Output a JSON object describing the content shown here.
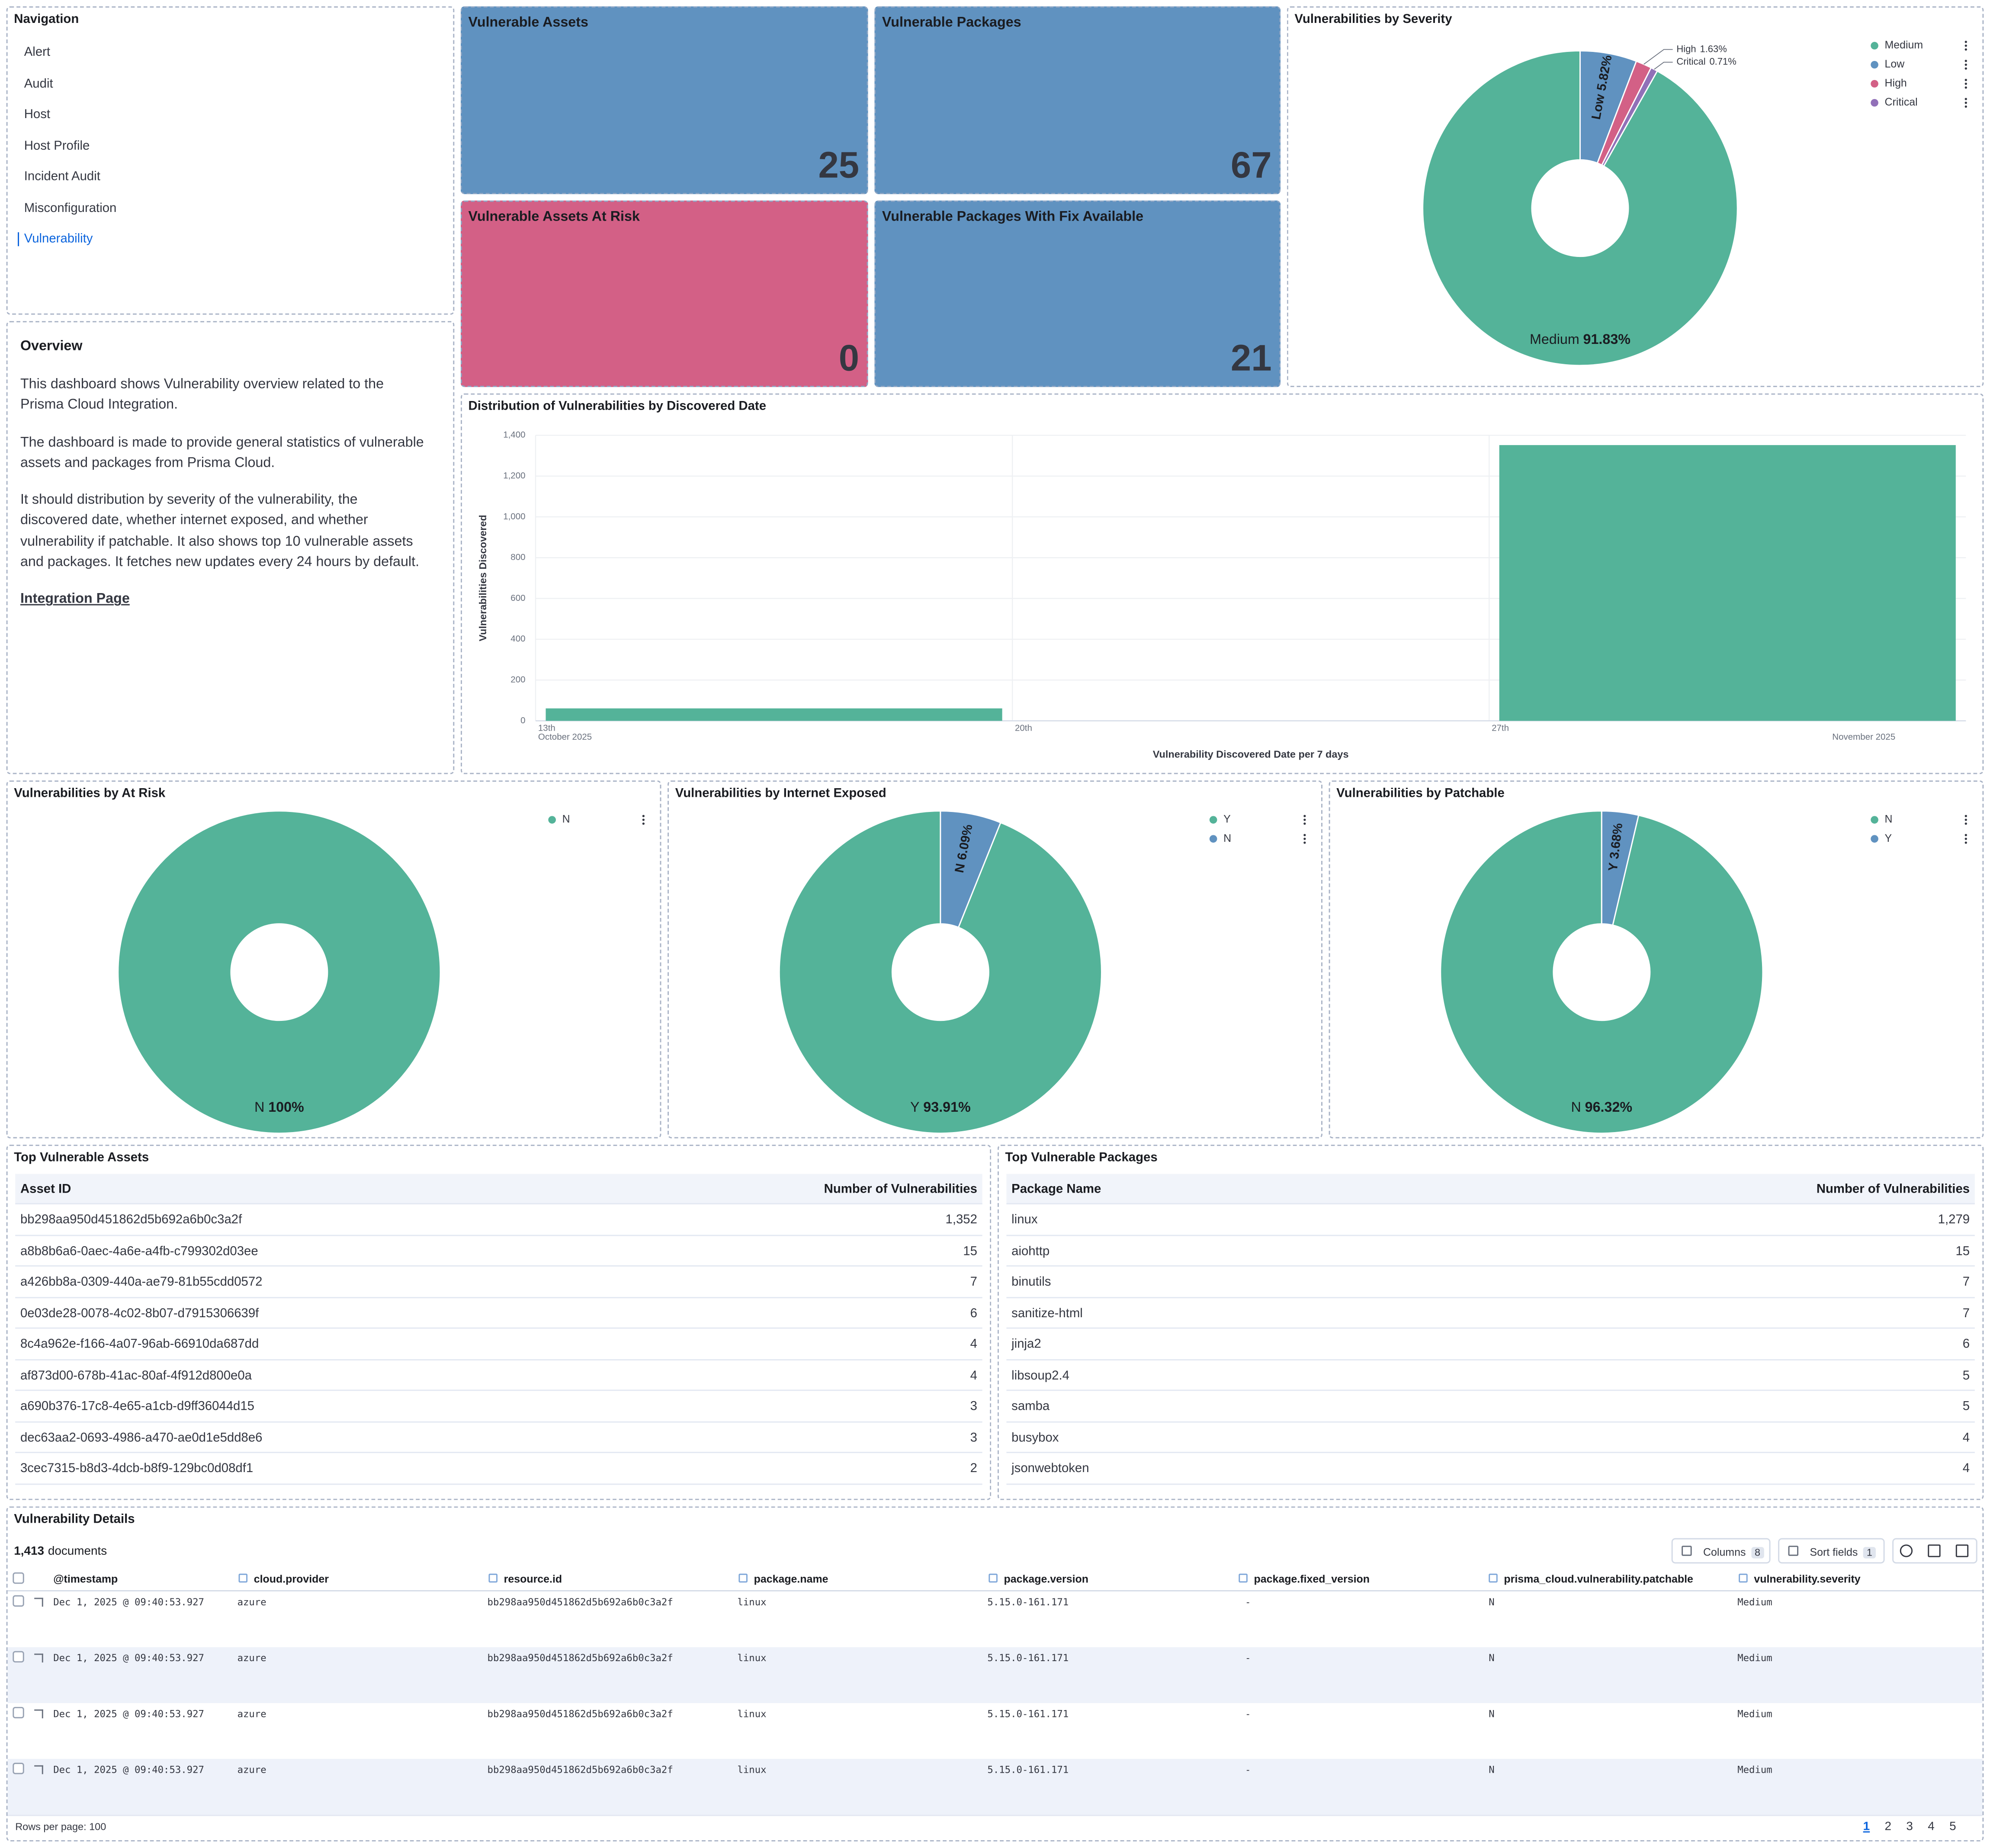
{
  "navigation": {
    "title": "Navigation",
    "items": [
      "Alert",
      "Audit",
      "Host",
      "Host Profile",
      "Incident Audit",
      "Misconfiguration",
      "Vulnerability"
    ],
    "active": 6
  },
  "overview": {
    "title": "Overview",
    "paragraphs": [
      "This dashboard shows Vulnerability overview related to the Prisma Cloud Integration.",
      "The dashboard is made to provide general statistics of vulnerable assets and packages from Prisma Cloud.",
      "It should distribution by severity of the vulnerability, the discovered date, whether internet exposed, and whether vulnerability if patchable. It also shows top 10 vulnerable assets and packages. It fetches new updates every 24 hours by default."
    ],
    "link": "Integration Page"
  },
  "metrics": [
    {
      "title": "Vulnerable Assets",
      "value": 25,
      "color": "#6092c0"
    },
    {
      "title": "Vulnerable Packages",
      "value": 67,
      "color": "#6092c0"
    },
    {
      "title": "Vulnerable Assets At Risk",
      "value": 0,
      "color": "#d36086"
    },
    {
      "title": "Vulnerable Packages With Fix Available",
      "value": 21,
      "color": "#6092c0"
    }
  ],
  "chart_data": [
    {
      "type": "pie",
      "title": "Vulnerabilities by Severity",
      "categories": [
        "Medium",
        "Low",
        "High",
        "Critical"
      ],
      "values": [
        91.83,
        5.82,
        1.63,
        0.71
      ],
      "value_labels": [
        "91.83%",
        "5.82%",
        "1.63%",
        "0.71%"
      ],
      "colors": [
        "#54b399",
        "#6092c0",
        "#d36086",
        "#9170b8"
      ],
      "legend": "top-right"
    },
    {
      "type": "bar",
      "title": "Distribution of Vulnerabilities by Discovered Date",
      "x_label": "Vulnerability Discovered Date per 7 days",
      "y_label": "Vulnerabilities Discovered",
      "x": [
        "2025-10-13",
        "2025-10-27"
      ],
      "values": [
        61,
        1352
      ],
      "color": "#54b399",
      "xlim": [
        "2025-10-13",
        "2025-11-03"
      ],
      "xticks": [
        {
          "value": "2025-10-13",
          "label": "13th"
        },
        {
          "value": "2025-10-20",
          "label": "20th"
        },
        {
          "value": "2025-10-27",
          "label": "27th"
        }
      ],
      "month_labels": [
        {
          "value": "2025-10-13",
          "label": "October 2025"
        },
        {
          "value": "2025-11",
          "label": "November 2025"
        }
      ],
      "ylim": [
        0,
        1400
      ],
      "yticks": [
        0,
        200,
        400,
        600,
        800,
        {
          "value": 1000,
          "label": "1,000"
        },
        {
          "value": 1200,
          "label": "1,200"
        },
        {
          "value": 1400,
          "label": "1,400"
        }
      ],
      "grid": true
    },
    {
      "type": "pie",
      "title": "Vulnerabilities by At Risk",
      "categories": [
        "N"
      ],
      "values": [
        100
      ],
      "value_labels": [
        "100%"
      ],
      "colors": [
        "#54b399"
      ],
      "legend": "top-right"
    },
    {
      "type": "pie",
      "title": "Vulnerabilities by Internet Exposed",
      "categories": [
        "Y",
        "N"
      ],
      "values": [
        93.91,
        6.09
      ],
      "value_labels": [
        "93.91%",
        "6.09%"
      ],
      "colors": [
        "#54b399",
        "#6092c0"
      ],
      "legend": "top-right"
    },
    {
      "type": "pie",
      "title": "Vulnerabilities by Patchable",
      "categories": [
        "N",
        "Y"
      ],
      "values": [
        96.32,
        3.68
      ],
      "value_labels": [
        "96.32%",
        "3.68%"
      ],
      "colors": [
        "#54b399",
        "#6092c0"
      ],
      "legend": "top-right"
    }
  ],
  "top_assets": {
    "title": "Top Vulnerable Assets",
    "columns": [
      "Asset ID",
      "Number of Vulnerabilities"
    ],
    "rows": [
      [
        "bb298aa950d451862d5b692a6b0c3a2f",
        "1,352"
      ],
      [
        "a8b8b6a6-0aec-4a6e-a4fb-c799302d03ee",
        "15"
      ],
      [
        "a426bb8a-0309-440a-ae79-81b55cdd0572",
        "7"
      ],
      [
        "0e03de28-0078-4c02-8b07-d7915306639f",
        "6"
      ],
      [
        "8c4a962e-f166-4a07-96ab-66910da687dd",
        "4"
      ],
      [
        "af873d00-678b-41ac-80af-4f912d800e0a",
        "4"
      ],
      [
        "a690b376-17c8-4e65-a1cb-d9ff36044d15",
        "3"
      ],
      [
        "dec63aa2-0693-4986-a470-ae0d1e5dd8e6",
        "3"
      ],
      [
        "3cec7315-b8d3-4dcb-b8f9-129bc0d08df1",
        "2"
      ]
    ]
  },
  "top_packages": {
    "title": "Top Vulnerable Packages",
    "columns": [
      "Package Name",
      "Number of Vulnerabilities"
    ],
    "rows": [
      [
        "linux",
        "1,279"
      ],
      [
        "aiohttp",
        "15"
      ],
      [
        "binutils",
        "7"
      ],
      [
        "sanitize-html",
        "7"
      ],
      [
        "jinja2",
        "6"
      ],
      [
        "libsoup2.4",
        "5"
      ],
      [
        "samba",
        "5"
      ],
      [
        "busybox",
        "4"
      ],
      [
        "jsonwebtoken",
        "4"
      ]
    ]
  },
  "details": {
    "title": "Vulnerability Details",
    "count": "1,413",
    "count_label": "documents",
    "buttons": [
      {
        "label": "Columns",
        "badge": "8"
      },
      {
        "label": "Sort fields",
        "badge": "1"
      }
    ],
    "columns": [
      "@timestamp",
      "cloud.provider",
      "resource.id",
      "package.name",
      "package.version",
      "package.fixed_version",
      "prisma_cloud.vulnerability.patchable",
      "vulnerability.severity"
    ],
    "rows": [
      [
        "Dec 1, 2025 @ 09:40:53.927",
        "azure",
        "bb298aa950d451862d5b692a6b0c3a2f",
        "linux",
        "5.15.0-161.171",
        "-",
        "N",
        "Medium"
      ],
      [
        "Dec 1, 2025 @ 09:40:53.927",
        "azure",
        "bb298aa950d451862d5b692a6b0c3a2f",
        "linux",
        "5.15.0-161.171",
        "-",
        "N",
        "Medium"
      ],
      [
        "Dec 1, 2025 @ 09:40:53.927",
        "azure",
        "bb298aa950d451862d5b692a6b0c3a2f",
        "linux",
        "5.15.0-161.171",
        "-",
        "N",
        "Medium"
      ],
      [
        "Dec 1, 2025 @ 09:40:53.927",
        "azure",
        "bb298aa950d451862d5b692a6b0c3a2f",
        "linux",
        "5.15.0-161.171",
        "-",
        "N",
        "Medium"
      ]
    ],
    "rows_per_page": "Rows per page: 100",
    "pages": [
      "1",
      "2",
      "3",
      "4",
      "5"
    ],
    "current_page": 0
  }
}
